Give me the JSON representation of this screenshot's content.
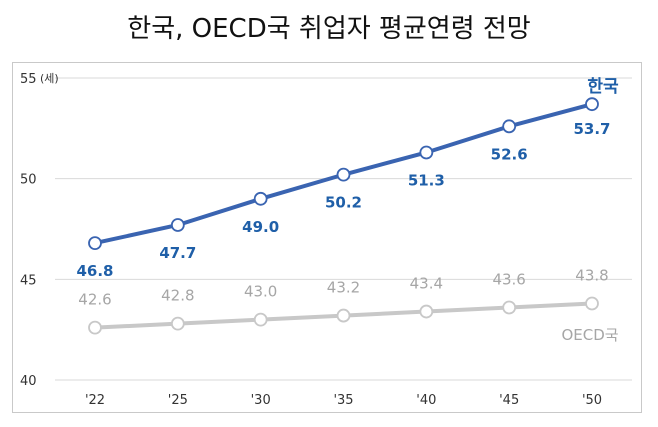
{
  "title": "한국, OECD국 취업자 평균연령 전망",
  "chart_data": {
    "type": "line",
    "unit_label": "(세)",
    "categories": [
      "'22",
      "'25",
      "'30",
      "'35",
      "'40",
      "'45",
      "'50"
    ],
    "ylim": [
      40,
      55
    ],
    "yticks": [
      "40",
      "45",
      "50",
      "55"
    ],
    "grid": true,
    "series": [
      {
        "name": "한국",
        "values": [
          46.8,
          47.7,
          49.0,
          50.2,
          51.3,
          52.6,
          53.7
        ],
        "labels": [
          "46.8",
          "47.7",
          "49.0",
          "50.2",
          "51.3",
          "52.6",
          "53.7"
        ],
        "color": "#3a64b1",
        "label_color": "#1f5fa8"
      },
      {
        "name": "OECD국",
        "values": [
          42.6,
          42.8,
          43.0,
          43.2,
          43.4,
          43.6,
          43.8
        ],
        "labels": [
          "42.6",
          "42.8",
          "43.0",
          "43.2",
          "43.4",
          "43.6",
          "43.8"
        ],
        "color": "#c8c8c8",
        "label_color": "#a6a6a6"
      }
    ]
  }
}
